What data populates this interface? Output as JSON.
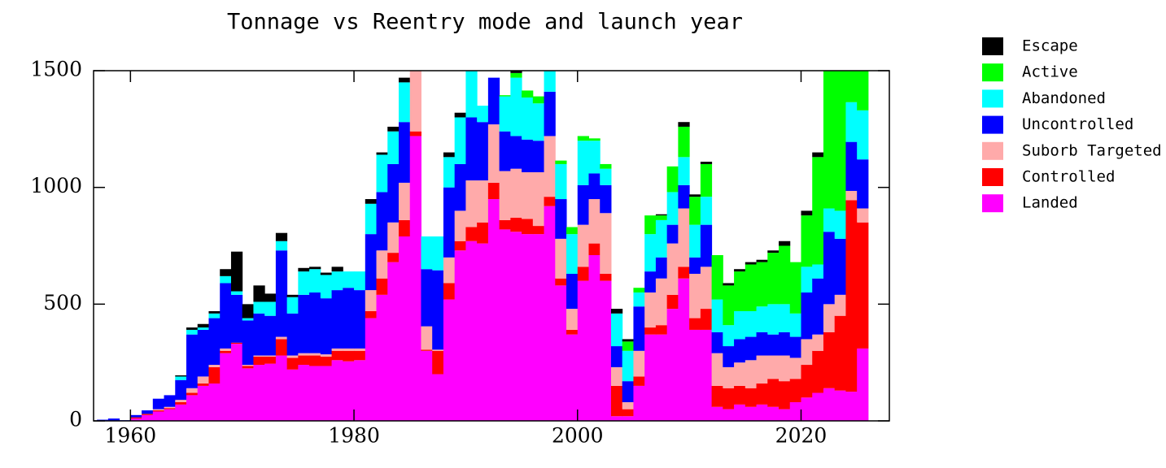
{
  "chart_data": {
    "type": "histogram",
    "stacked": true,
    "title": "Tonnage vs Reentry mode and launch year",
    "bins": [
      1957,
      1958,
      1959,
      1960,
      1961,
      1962,
      1963,
      1964,
      1965,
      1966,
      1967,
      1968,
      1969,
      1970,
      1971,
      1972,
      1973,
      1974,
      1975,
      1976,
      1977,
      1978,
      1979,
      1980,
      1981,
      1982,
      1983,
      1984,
      1985,
      1986,
      1987,
      1988,
      1989,
      1990,
      1991,
      1992,
      1993,
      1994,
      1995,
      1996,
      1997,
      1998,
      1999,
      2000,
      2001,
      2002,
      2003,
      2004,
      2005,
      2006,
      2007,
      2008,
      2009,
      2010,
      2011,
      2012,
      2013,
      2014,
      2015,
      2016,
      2017,
      2018,
      2019,
      2020,
      2021,
      2022,
      2023,
      2024,
      2025,
      2026
    ],
    "xlim": [
      1956.7,
      2027.9
    ],
    "xticks": [
      1960,
      1980,
      2000,
      2020
    ],
    "ylim": [
      0,
      1500
    ],
    "yticks": [
      0,
      500,
      1000,
      1500
    ],
    "series": [
      {
        "name": "Landed",
        "color": "#ff00ff",
        "values": [
          0,
          0,
          0,
          10,
          25,
          40,
          50,
          70,
          110,
          150,
          160,
          290,
          330,
          225,
          240,
          245,
          280,
          220,
          240,
          235,
          235,
          260,
          255,
          260,
          440,
          540,
          680,
          790,
          1220,
          300,
          200,
          520,
          730,
          770,
          760,
          950,
          820,
          810,
          800,
          800,
          920,
          580,
          370,
          600,
          710,
          600,
          20,
          20,
          150,
          370,
          370,
          480,
          610,
          390,
          390,
          60,
          50,
          70,
          60,
          70,
          60,
          50,
          80,
          100,
          120,
          140,
          130,
          125,
          310
        ]
      },
      {
        "name": "Controlled",
        "color": "#ff0000",
        "values": [
          0,
          0,
          0,
          5,
          5,
          5,
          5,
          10,
          10,
          10,
          70,
          10,
          5,
          10,
          35,
          30,
          70,
          50,
          40,
          45,
          40,
          40,
          45,
          40,
          30,
          70,
          40,
          70,
          20,
          5,
          100,
          70,
          40,
          60,
          90,
          70,
          40,
          60,
          65,
          35,
          40,
          30,
          20,
          60,
          50,
          30,
          130,
          30,
          40,
          30,
          40,
          60,
          50,
          50,
          90,
          90,
          90,
          80,
          80,
          90,
          120,
          120,
          100,
          140,
          180,
          240,
          320,
          820,
          540
        ]
      },
      {
        "name": "Suborb Targeted",
        "color": "#ffaaaa",
        "values": [
          0,
          0,
          0,
          0,
          0,
          5,
          5,
          10,
          20,
          30,
          10,
          10,
          0,
          5,
          5,
          5,
          10,
          10,
          10,
          10,
          10,
          10,
          10,
          10,
          90,
          120,
          130,
          160,
          300,
          100,
          5,
          110,
          130,
          200,
          180,
          250,
          210,
          210,
          200,
          230,
          260,
          170,
          90,
          180,
          190,
          260,
          80,
          30,
          110,
          150,
          200,
          220,
          250,
          190,
          180,
          140,
          90,
          100,
          120,
          120,
          100,
          110,
          90,
          110,
          70,
          120,
          90,
          40,
          60
        ]
      },
      {
        "name": "Uncontrolled",
        "color": "#0000ff",
        "values": [
          5,
          10,
          3,
          10,
          15,
          45,
          50,
          85,
          230,
          200,
          200,
          280,
          205,
          190,
          180,
          170,
          370,
          180,
          250,
          260,
          240,
          250,
          260,
          250,
          240,
          250,
          250,
          260,
          100,
          245,
          340,
          300,
          200,
          270,
          250,
          200,
          170,
          140,
          140,
          135,
          190,
          170,
          150,
          170,
          110,
          120,
          90,
          90,
          190,
          90,
          90,
          80,
          100,
          70,
          180,
          90,
          90,
          100,
          100,
          100,
          90,
          100,
          90,
          200,
          240,
          310,
          240,
          210,
          210
        ]
      },
      {
        "name": "Abandoned",
        "color": "#00ffff",
        "values": [
          0,
          0,
          0,
          0,
          0,
          0,
          0,
          15,
          20,
          10,
          20,
          30,
          15,
          10,
          50,
          60,
          40,
          70,
          100,
          100,
          100,
          80,
          70,
          80,
          130,
          160,
          140,
          170,
          0,
          140,
          145,
          130,
          200,
          250,
          70,
          0,
          150,
          250,
          180,
          160,
          90,
          150,
          170,
          190,
          140,
          70,
          140,
          130,
          60,
          160,
          160,
          140,
          120,
          140,
          120,
          140,
          90,
          120,
          110,
          110,
          130,
          120,
          100,
          110,
          60,
          100,
          120,
          170,
          210
        ]
      },
      {
        "name": "Active",
        "color": "#00ff00",
        "values": [
          0,
          0,
          0,
          0,
          0,
          0,
          0,
          0,
          0,
          0,
          0,
          0,
          0,
          0,
          0,
          0,
          0,
          0,
          0,
          0,
          0,
          0,
          0,
          0,
          0,
          0,
          0,
          0,
          0,
          0,
          0,
          0,
          0,
          0,
          0,
          0,
          5,
          20,
          30,
          30,
          0,
          15,
          30,
          20,
          10,
          20,
          0,
          40,
          20,
          80,
          20,
          110,
          130,
          120,
          140,
          190,
          170,
          170,
          200,
          190,
          220,
          250,
          220,
          220,
          460,
          590,
          600,
          135,
          170
        ]
      },
      {
        "name": "Escape",
        "color": "#000000",
        "values": [
          0,
          0,
          0,
          0,
          0,
          0,
          0,
          5,
          10,
          15,
          10,
          30,
          170,
          60,
          70,
          35,
          35,
          10,
          15,
          10,
          10,
          20,
          0,
          0,
          20,
          10,
          20,
          20,
          0,
          0,
          0,
          20,
          20,
          0,
          0,
          0,
          0,
          10,
          0,
          0,
          0,
          0,
          0,
          0,
          0,
          0,
          20,
          10,
          0,
          0,
          5,
          0,
          20,
          10,
          10,
          0,
          10,
          10,
          10,
          10,
          10,
          20,
          0,
          20,
          20,
          0,
          0,
          0,
          0
        ]
      }
    ]
  }
}
